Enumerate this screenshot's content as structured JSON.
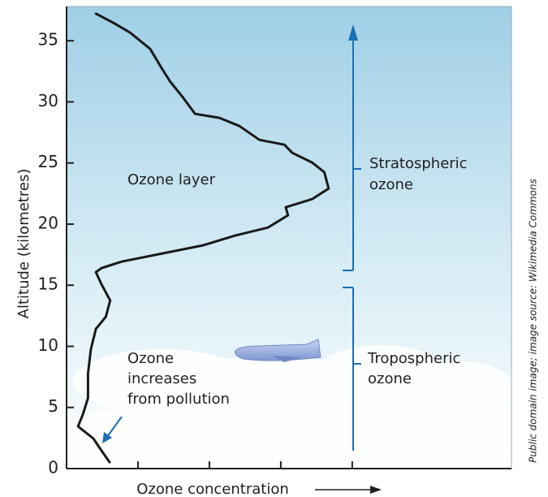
{
  "chart_data": {
    "type": "line",
    "ylabel": "Altitude (kilometres)",
    "xlabel": "Ozone concentration",
    "credit": "Public domain image; image source: Wikimedia Commons",
    "ylim": [
      0,
      37.8
    ],
    "yticks": [
      0,
      5,
      10,
      15,
      20,
      25,
      30,
      35
    ],
    "xlim": [
      0,
      6.23
    ],
    "xticks": [
      1,
      2,
      3,
      4
    ],
    "series": [
      {
        "color": "#1a1a1a",
        "x": [
          0.61,
          0.49,
          0.375,
          0.16,
          0.23,
          0.3,
          0.3,
          0.34,
          0.41,
          0.55,
          0.61,
          0.49,
          0.41,
          0.49,
          0.77,
          1.34,
          1.91,
          2.36,
          2.82,
          3.1,
          3.07,
          3.44,
          3.67,
          3.61,
          3.44,
          3.16,
          3.05,
          2.7,
          2.42,
          2.14,
          1.8,
          1.63,
          1.45,
          1.34,
          1.17,
          0.89,
          0.66,
          0.4
        ],
        "values": [
          0.46,
          1.46,
          2.46,
          3.45,
          4.45,
          5.78,
          7.77,
          9.76,
          11.42,
          12.42,
          13.75,
          15.07,
          16.07,
          16.4,
          16.93,
          17.6,
          18.26,
          19.06,
          19.72,
          20.72,
          21.38,
          22.05,
          22.91,
          24.24,
          25.03,
          25.83,
          26.49,
          26.89,
          28.02,
          28.69,
          29.02,
          30.35,
          31.67,
          32.67,
          34.33,
          35.66,
          36.45,
          37.25
        ]
      }
    ],
    "annotations": {
      "ozone_layer": "Ozone layer",
      "pollution": [
        "Ozone",
        "increases",
        "from pollution"
      ],
      "stratospheric": [
        "Stratospheric",
        "ozone"
      ],
      "tropospheric": [
        "Tropospheric",
        "ozone"
      ]
    }
  }
}
